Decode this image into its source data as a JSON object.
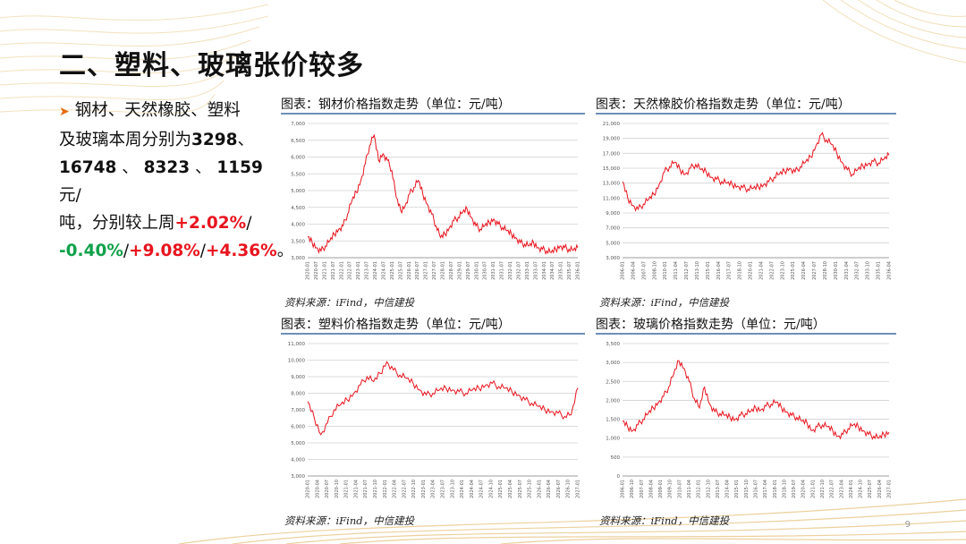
{
  "slide": {
    "title": "二、塑料、玻璃张价较多",
    "page_number": "9",
    "accent_color": "#c89a3a"
  },
  "summary": {
    "line1": "钢材、天然橡胶、塑料",
    "line2_pre": "及玻璃本周分别为",
    "v_steel": "3298",
    "comma1": "、",
    "v_rubber": "16748",
    "sep2": " 、 ",
    "v_plastic": "8323",
    "sep3": " 、 ",
    "v_glass": "1159",
    "unit": "元/",
    "line4_pre": "吨，分别较上周",
    "c_steel": "+2.02%",
    "slash": "/",
    "c_rubber": "-0.40%",
    "c_plastic": "+9.08%",
    "c_glass": "+4.36%",
    "end": "。"
  },
  "chart_data": [
    {
      "type": "line",
      "title": "图表：钢材价格指数走势（单位：元/吨）",
      "source": "资料来源：iFind，中信建投",
      "series_color": "#e8141e",
      "ylim": [
        3000,
        7000
      ],
      "yticks": [
        "3,000",
        "3,500",
        "4,000",
        "4,500",
        "5,000",
        "5,500",
        "6,000",
        "6,500",
        "7,000"
      ],
      "xticks": [
        "2020-01",
        "2020-07",
        "2021-01",
        "2021-07",
        "2022-01",
        "2022-07",
        "2023-01",
        "2023-07",
        "2024-01",
        "2024-07",
        "2025-01",
        "2025-07",
        "2026-01",
        "2026-07",
        "2027-01",
        "2027-07",
        "2028-01",
        "2028-07",
        "2029-01",
        "2029-07",
        "2030-01",
        "2030-07",
        "2031-01",
        "2031-07",
        "2032-01",
        "2032-07",
        "2033-01",
        "2033-07",
        "2034-01",
        "2034-07",
        "2035-01",
        "2035-07",
        "2036-01"
      ],
      "values": [
        3620,
        3450,
        3300,
        3200,
        3350,
        3500,
        3700,
        3850,
        3950,
        4300,
        4700,
        4950,
        5300,
        5800,
        6350,
        6650,
        5900,
        6100,
        5900,
        5600,
        4800,
        4400,
        4550,
        4900,
        5100,
        5300,
        4900,
        4600,
        4300,
        3950,
        3600,
        3700,
        3900,
        4100,
        4200,
        4350,
        4450,
        4200,
        3950,
        3850,
        3950,
        4050,
        4150,
        4000,
        3900,
        3800,
        3700,
        3600,
        3450,
        3400,
        3350,
        3450,
        3300,
        3250,
        3200,
        3150,
        3250,
        3350,
        3300,
        3250,
        3220,
        3298
      ],
      "grid": true
    },
    {
      "type": "line",
      "title": "图表：天然橡胶价格指数走势（单位：元/吨）",
      "source": "资料来源：iFind，中信建投",
      "series_color": "#e8141e",
      "ylim": [
        3000,
        21000
      ],
      "yticks": [
        "3,000",
        "5,000",
        "7,000",
        "9,000",
        "11,000",
        "13,000",
        "15,000",
        "17,000",
        "19,000",
        "21,000"
      ],
      "xticks": [
        "2006-01",
        "2006-04",
        "2007-07",
        "2008-10",
        "2010-01",
        "2011-04",
        "2012-07",
        "2013-10",
        "2015-01",
        "2016-04",
        "2017-07",
        "2018-10",
        "2020-01",
        "2021-04",
        "2022-07",
        "2023-10",
        "2025-01",
        "2026-04",
        "2027-07",
        "2028-10",
        "2030-01",
        "2031-04",
        "2032-07",
        "2033-10",
        "2035-01",
        "2036-04"
      ],
      "values": [
        13200,
        11000,
        10000,
        9500,
        10200,
        10800,
        11500,
        12800,
        14500,
        15200,
        15800,
        14800,
        14200,
        15000,
        15500,
        14800,
        14500,
        13800,
        13500,
        13200,
        13000,
        12800,
        12600,
        12400,
        12200,
        12300,
        12500,
        12800,
        13200,
        13800,
        14200,
        14600,
        15000,
        14500,
        15200,
        15800,
        16500,
        18000,
        19500,
        18800,
        18200,
        17000,
        15800,
        14800,
        14200,
        14800,
        15300,
        15600,
        15900,
        15700,
        16200,
        16748
      ],
      "grid": true
    },
    {
      "type": "line",
      "title": "图表：塑料价格指数走势（单位：元/吨）",
      "source": "资料来源：iFind，中信建投",
      "series_color": "#e8141e",
      "ylim": [
        3000,
        11000
      ],
      "yticks": [
        "3,000",
        "4,000",
        "5,000",
        "6,000",
        "7,000",
        "8,000",
        "9,000",
        "10,000",
        "11,000"
      ],
      "xticks": [
        "2020-01",
        "2020-04",
        "2020-07",
        "2020-10",
        "2021-01",
        "2021-04",
        "2021-07",
        "2021-10",
        "2022-01",
        "2022-04",
        "2022-07",
        "2022-10",
        "2023-01",
        "2023-04",
        "2023-07",
        "2023-10",
        "2024-01",
        "2024-04",
        "2024-07",
        "2024-10",
        "2025-01",
        "2025-04",
        "2025-07",
        "2025-10",
        "2026-01",
        "2026-04",
        "2026-07",
        "2026-10",
        "2027-01"
      ],
      "values": [
        7500,
        6500,
        5500,
        6200,
        7000,
        7300,
        7600,
        8000,
        8500,
        9000,
        8700,
        9200,
        9900,
        9400,
        9100,
        8900,
        8600,
        8200,
        7900,
        8000,
        8200,
        8300,
        8200,
        8100,
        8000,
        8200,
        8300,
        8500,
        8600,
        8400,
        8300,
        8100,
        7900,
        7600,
        7400,
        7200,
        7000,
        6900,
        6800,
        6600,
        6700,
        8323
      ],
      "grid": true
    },
    {
      "type": "line",
      "title": "图表：玻璃价格指数走势（单位：元/吨）",
      "source": "资料来源：iFind，中信建投",
      "series_color": "#e8141e",
      "ylim": [
        0,
        3500
      ],
      "yticks": [
        "0",
        "500",
        "1,000",
        "1,500",
        "2,000",
        "2,500",
        "3,000",
        "3,500"
      ],
      "xticks": [
        "2006-01",
        "2006-10",
        "2007-07",
        "2008-04",
        "2009-01",
        "2009-10",
        "2010-07",
        "2011-04",
        "2012-01",
        "2012-10",
        "2013-07",
        "2014-04",
        "2015-01",
        "2015-10",
        "2016-07",
        "2017-04",
        "2018-01",
        "2018-10",
        "2019-07",
        "2020-04",
        "2021-01",
        "2021-10",
        "2022-07",
        "2023-04",
        "2024-01",
        "2024-10",
        "2025-07",
        "2026-04",
        "2027-01"
      ],
      "values": [
        1450,
        1300,
        1200,
        1350,
        1500,
        1650,
        1800,
        1950,
        2100,
        2350,
        2700,
        3050,
        2850,
        2500,
        2050,
        1800,
        2350,
        1900,
        1700,
        1650,
        1600,
        1550,
        1500,
        1600,
        1650,
        1700,
        1800,
        1750,
        1850,
        1900,
        1950,
        1800,
        1700,
        1600,
        1550,
        1450,
        1400,
        1200,
        1300,
        1350,
        1300,
        1200,
        1050,
        1100,
        1250,
        1350,
        1300,
        1200,
        1100,
        1050,
        1000,
        1100,
        1159
      ],
      "grid": true
    }
  ]
}
